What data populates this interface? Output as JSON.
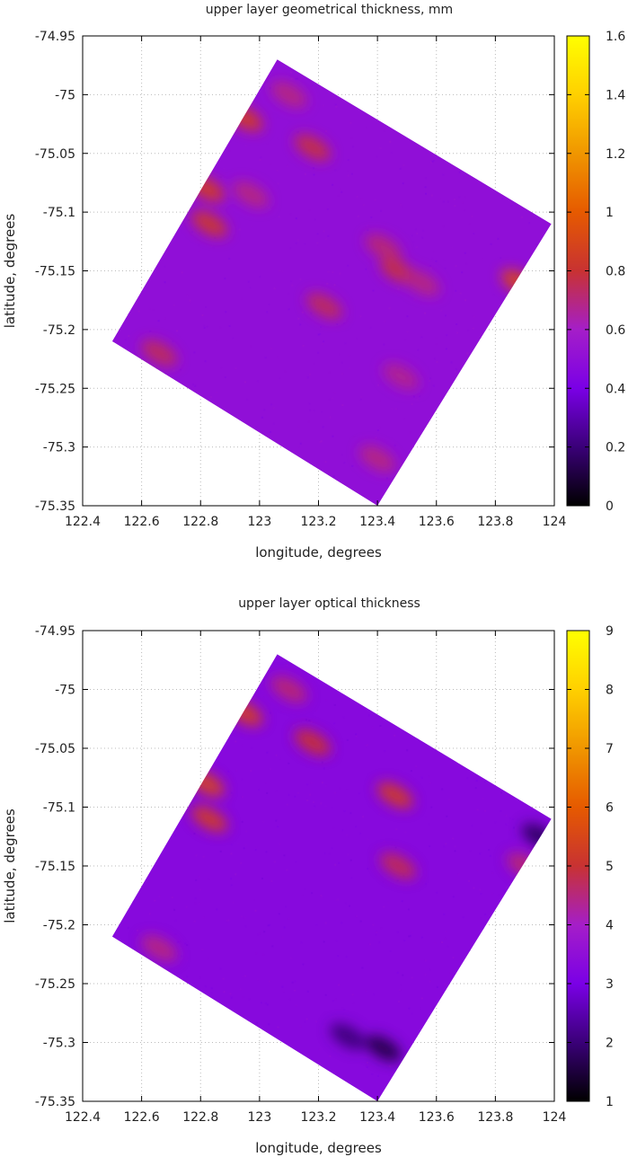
{
  "colors": {
    "palette": [
      "#000000",
      "#3a0078",
      "#7a00e6",
      "#a51ec8",
      "#c83232",
      "#e65a00",
      "#f09600",
      "#ffd000",
      "#ffff00"
    ],
    "grid": "#bbbbbb",
    "frame": "#000000"
  },
  "chart_data": [
    {
      "type": "heatmap",
      "title": "upper layer geometrical thickness, mm",
      "xlabel": "longitude, degrees",
      "ylabel": "latitude, degrees",
      "xlim": [
        122.4,
        124
      ],
      "ylim": [
        -75.35,
        -74.95
      ],
      "x_ticks": [
        "122.4",
        "122.6",
        "122.8",
        "123",
        "123.2",
        "123.4",
        "123.6",
        "123.8",
        "124"
      ],
      "y_ticks": [
        "-74.95",
        "-75",
        "-75.05",
        "-75.1",
        "-75.15",
        "-75.2",
        "-75.25",
        "-75.3",
        "-75.35"
      ],
      "colorbar_range": [
        0,
        1.6
      ],
      "colorbar_ticks": [
        "0",
        "0.2",
        "0.4",
        "0.6",
        "0.8",
        "1",
        "1.2",
        "1.4",
        "1.6"
      ],
      "grid": true,
      "swath_corners": [
        [
          123.06,
          -74.97
        ],
        [
          123.99,
          -75.11
        ],
        [
          123.4,
          -75.35
        ],
        [
          122.5,
          -75.21
        ]
      ],
      "background_value": 0.5,
      "patches": [
        {
          "lon": 122.83,
          "lat": -75.11,
          "value": 0.82
        },
        {
          "lon": 122.82,
          "lat": -75.08,
          "value": 0.85
        },
        {
          "lon": 122.95,
          "lat": -75.02,
          "value": 0.85
        },
        {
          "lon": 123.18,
          "lat": -75.045,
          "value": 0.78
        },
        {
          "lon": 123.1,
          "lat": -75.0,
          "value": 0.7
        },
        {
          "lon": 122.97,
          "lat": -75.085,
          "value": 0.7
        },
        {
          "lon": 123.22,
          "lat": -75.18,
          "value": 0.75
        },
        {
          "lon": 123.42,
          "lat": -75.13,
          "value": 0.72
        },
        {
          "lon": 123.47,
          "lat": -75.15,
          "value": 0.78
        },
        {
          "lon": 123.55,
          "lat": -75.16,
          "value": 0.7
        },
        {
          "lon": 123.88,
          "lat": -75.16,
          "value": 0.9
        },
        {
          "lon": 122.66,
          "lat": -75.22,
          "value": 0.75
        },
        {
          "lon": 123.48,
          "lat": -75.24,
          "value": 0.68
        },
        {
          "lon": 123.4,
          "lat": -75.31,
          "value": 0.7
        }
      ]
    },
    {
      "type": "heatmap",
      "title": "upper layer optical thickness",
      "xlabel": "longitude, degrees",
      "ylabel": "latitude, degrees",
      "xlim": [
        122.4,
        124
      ],
      "ylim": [
        -75.35,
        -74.95
      ],
      "x_ticks": [
        "122.4",
        "122.6",
        "122.8",
        "123",
        "123.2",
        "123.4",
        "123.6",
        "123.8",
        "124"
      ],
      "y_ticks": [
        "-74.95",
        "-75",
        "-75.05",
        "-75.1",
        "-75.15",
        "-75.2",
        "-75.25",
        "-75.3",
        "-75.35"
      ],
      "colorbar_range": [
        1,
        9
      ],
      "colorbar_ticks": [
        "1",
        "2",
        "3",
        "4",
        "5",
        "6",
        "7",
        "8",
        "9"
      ],
      "grid": true,
      "swath_corners": [
        [
          123.06,
          -74.97
        ],
        [
          123.99,
          -75.11
        ],
        [
          123.4,
          -75.35
        ],
        [
          122.5,
          -75.21
        ]
      ],
      "background_value": 3.3,
      "patches": [
        {
          "lon": 122.83,
          "lat": -75.11,
          "value": 5.2
        },
        {
          "lon": 122.82,
          "lat": -75.08,
          "value": 5.4
        },
        {
          "lon": 122.95,
          "lat": -75.02,
          "value": 5.3
        },
        {
          "lon": 123.18,
          "lat": -75.045,
          "value": 5.0
        },
        {
          "lon": 123.1,
          "lat": -75.0,
          "value": 4.6
        },
        {
          "lon": 123.46,
          "lat": -75.09,
          "value": 5.2
        },
        {
          "lon": 123.47,
          "lat": -75.15,
          "value": 4.8
        },
        {
          "lon": 122.66,
          "lat": -75.22,
          "value": 4.5
        },
        {
          "lon": 123.9,
          "lat": -75.15,
          "value": 4.6
        },
        {
          "lon": 123.42,
          "lat": -75.305,
          "value": 1.6
        },
        {
          "lon": 123.95,
          "lat": -75.125,
          "value": 1.8
        },
        {
          "lon": 123.3,
          "lat": -75.295,
          "value": 2.0
        }
      ]
    }
  ]
}
